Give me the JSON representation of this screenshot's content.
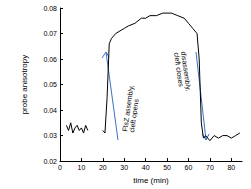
{
  "chart_data": {
    "type": "line",
    "x_label": "time (min)",
    "y_label": "probe anisotropy",
    "annotations": [
      "FtsZ assembly,\ncleft opens",
      "disassembly,\ncleft closes"
    ],
    "x": [
      3,
      4,
      5,
      6,
      7,
      8,
      9,
      10,
      11,
      12,
      13,
      16,
      20,
      21,
      22,
      23,
      24,
      26,
      28,
      30,
      32,
      35,
      38,
      40,
      42,
      45,
      48,
      50,
      52,
      55,
      58,
      60,
      62,
      64,
      65,
      66,
      67,
      68,
      70,
      72,
      74,
      76,
      78,
      80,
      82,
      84
    ],
    "series": [
      {
        "name": "anisotropy",
        "color": "#000000",
        "values": [
          0.034,
          0.032,
          0.035,
          0.031,
          0.033,
          0.034,
          0.032,
          0.033,
          0.031,
          0.034,
          0.032,
          null,
          0.032,
          0.031,
          0.045,
          0.066,
          0.068,
          0.07,
          0.071,
          0.072,
          0.073,
          0.074,
          0.076,
          0.076,
          0.077,
          0.077,
          0.078,
          0.078,
          0.078,
          0.077,
          0.076,
          0.074,
          0.072,
          0.07,
          0.06,
          0.035,
          0.029,
          0.03,
          0.028,
          0.03,
          0.029,
          0.03,
          0.03,
          0.029,
          0.03,
          0.031
        ]
      }
    ],
    "xlim": [
      0,
      85
    ],
    "xticks": [
      0,
      10,
      20,
      30,
      40,
      50,
      60,
      70,
      80
    ],
    "ylim": [
      0.02,
      0.08
    ],
    "yticks": [
      0.02,
      0.03,
      0.04,
      0.05,
      0.06,
      0.07,
      0.08
    ],
    "grid": false
  }
}
